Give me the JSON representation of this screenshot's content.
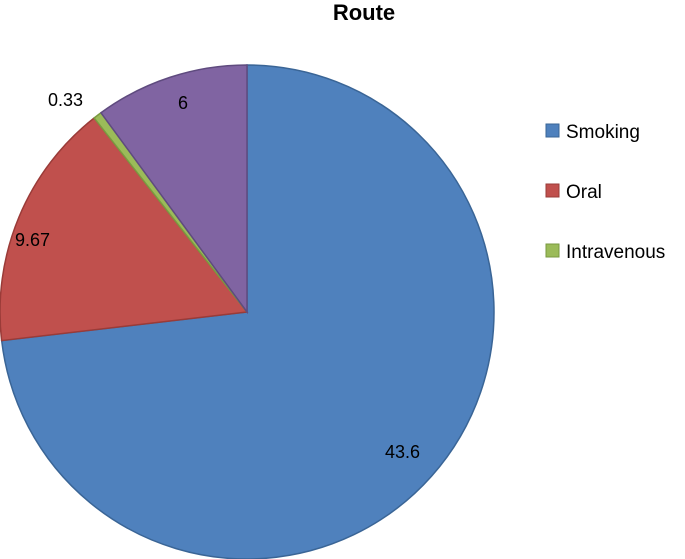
{
  "chart_data": {
    "type": "pie",
    "title": "Route",
    "categories": [
      "Smoking",
      "Oral",
      "Intravenous",
      ""
    ],
    "values": [
      43.6,
      9.67,
      0.33,
      6
    ],
    "value_labels": [
      "43.6",
      "9.67",
      "0.33",
      "6"
    ],
    "colors": [
      "#4F81BD",
      "#C0504D",
      "#9BBB59",
      "#8064A2"
    ],
    "legend": [
      "Smoking",
      "Oral",
      "Intravenous"
    ],
    "legend_position": "right",
    "start_angle": "12 o'clock",
    "direction": "clockwise"
  }
}
